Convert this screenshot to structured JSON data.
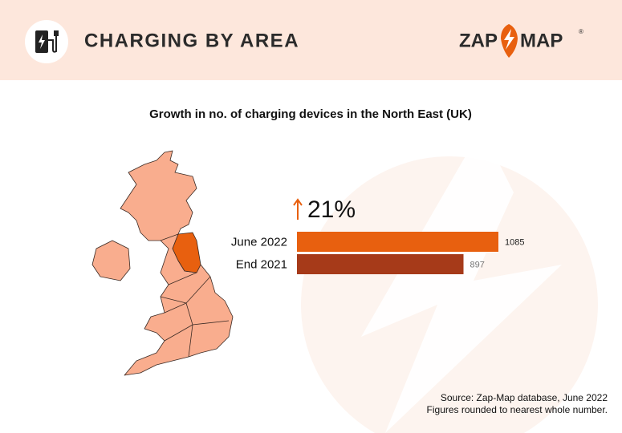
{
  "header": {
    "title": "CHARGING BY AREA",
    "logo": {
      "left": "ZAP",
      "right": "MAP",
      "mark": "®"
    }
  },
  "chart_data": {
    "type": "bar",
    "orientation": "horizontal",
    "title": "Growth in no. of charging devices in the North East (UK)",
    "annotation": "21%",
    "categories": [
      "June 2022",
      "End 2021"
    ],
    "values": [
      1085,
      897
    ],
    "colors": [
      "#e8600f",
      "#a63a19"
    ],
    "value_label_colors": [
      "#222222",
      "#777777"
    ]
  },
  "footer": {
    "source": "Source: Zap-Map database, June 2022",
    "note": "Figures rounded to nearest whole number."
  }
}
